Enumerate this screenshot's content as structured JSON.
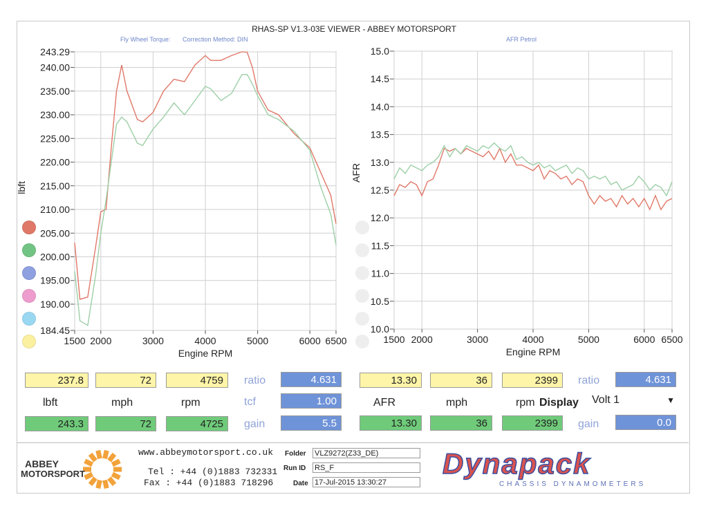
{
  "header": {
    "title": "RHAS-SP V1.3-03E VIEWER - ABBEY MOTORSPORT",
    "left_caption": "Fly Wheel Torque:",
    "left_caption2": "Correction Method: DIN",
    "right_caption": "AFR Petrol"
  },
  "chart_data": [
    {
      "type": "line",
      "xlabel": "Engine RPM",
      "ylabel": "lbft",
      "xlim": [
        1500,
        6500
      ],
      "ylim": [
        184.45,
        243.29
      ],
      "x_ticks": [
        "1500",
        "2000",
        "3000",
        "4000",
        "5000",
        "6000",
        "6500"
      ],
      "y_ticks": [
        "243.29",
        "240.00",
        "235.00",
        "230.00",
        "225.00",
        "220.00",
        "215.00",
        "210.00",
        "205.00",
        "200.00",
        "195.00",
        "190.00",
        "184.45"
      ],
      "grid": true,
      "colors": {
        "red": "#e07868",
        "green": "#9ccfa6"
      },
      "series": [
        {
          "color": "#e07868",
          "x": [
            1500,
            1600,
            1750,
            1900,
            2000,
            2100,
            2200,
            2300,
            2400,
            2500,
            2700,
            2800,
            3000,
            3200,
            3400,
            3600,
            3800,
            4000,
            4100,
            4300,
            4500,
            4700,
            4800,
            4900,
            5000,
            5200,
            5400,
            5700,
            6000,
            6200,
            6400,
            6500
          ],
          "y": [
            203,
            191,
            191.5,
            202,
            209.5,
            210,
            223,
            235,
            240.5,
            235,
            229,
            228.5,
            230.5,
            235,
            237.5,
            237,
            240.5,
            242.5,
            241.5,
            241.5,
            242.5,
            243.3,
            243.2,
            240,
            235,
            231,
            230,
            226,
            223,
            218,
            213,
            207
          ]
        },
        {
          "color": "#9ccfa6",
          "x": [
            1500,
            1600,
            1750,
            1900,
            2000,
            2100,
            2200,
            2300,
            2400,
            2500,
            2700,
            2800,
            3000,
            3200,
            3400,
            3600,
            3800,
            4000,
            4100,
            4300,
            4500,
            4700,
            4800,
            4900,
            5000,
            5200,
            5400,
            5700,
            6000,
            6200,
            6400,
            6500
          ],
          "y": [
            197,
            186.5,
            185.5,
            196,
            205,
            212,
            220,
            228,
            229.5,
            228.5,
            224,
            223.5,
            227,
            229.5,
            232.5,
            230,
            233,
            236,
            235.5,
            233,
            234.5,
            238.5,
            238.5,
            236.5,
            234,
            230,
            229,
            226.5,
            222.5,
            215,
            209,
            202.5
          ]
        }
      ]
    },
    {
      "type": "line",
      "xlabel": "Engine RPM",
      "ylabel": "AFR",
      "xlim": [
        1500,
        6500
      ],
      "ylim": [
        10.0,
        15.0
      ],
      "x_ticks": [
        "1500",
        "2000",
        "3000",
        "4000",
        "5000",
        "6000",
        "6500"
      ],
      "y_ticks": [
        "15.0",
        "14.5",
        "14.0",
        "13.5",
        "13.0",
        "12.5",
        "12.0",
        "11.5",
        "11.0",
        "10.5",
        "10.0"
      ],
      "grid": true,
      "series": [
        {
          "color": "#e07868",
          "x": [
            1500,
            1600,
            1700,
            1800,
            1900,
            2000,
            2100,
            2200,
            2300,
            2400,
            2500,
            2600,
            2700,
            2800,
            2900,
            3000,
            3100,
            3200,
            3300,
            3400,
            3500,
            3600,
            3700,
            3800,
            3900,
            4000,
            4100,
            4200,
            4300,
            4400,
            4500,
            4600,
            4700,
            4800,
            4900,
            5000,
            5100,
            5200,
            5300,
            5400,
            5500,
            5600,
            5700,
            5800,
            5900,
            6000,
            6100,
            6200,
            6300,
            6400,
            6500
          ],
          "y": [
            12.4,
            12.6,
            12.55,
            12.65,
            12.6,
            12.4,
            12.65,
            12.7,
            12.95,
            13.25,
            13.2,
            13.25,
            13.15,
            13.25,
            13.2,
            13.15,
            13.1,
            13.2,
            13.05,
            13.25,
            13.0,
            13.15,
            12.95,
            12.95,
            12.9,
            12.85,
            12.95,
            12.7,
            12.85,
            12.8,
            12.7,
            12.75,
            12.6,
            12.7,
            12.65,
            12.4,
            12.25,
            12.4,
            12.3,
            12.35,
            12.2,
            12.4,
            12.25,
            12.35,
            12.2,
            12.35,
            12.15,
            12.4,
            12.15,
            12.3,
            12.35
          ]
        },
        {
          "color": "#9ccfa6",
          "x": [
            1500,
            1600,
            1700,
            1800,
            1900,
            2000,
            2100,
            2200,
            2300,
            2400,
            2500,
            2600,
            2700,
            2800,
            2900,
            3000,
            3100,
            3200,
            3300,
            3400,
            3500,
            3600,
            3700,
            3800,
            3900,
            4000,
            4100,
            4200,
            4300,
            4400,
            4500,
            4600,
            4700,
            4800,
            4900,
            5000,
            5100,
            5200,
            5300,
            5400,
            5500,
            5600,
            5700,
            5800,
            5900,
            6000,
            6100,
            6200,
            6300,
            6400,
            6500
          ],
          "y": [
            12.7,
            12.9,
            12.8,
            12.95,
            12.9,
            12.85,
            12.95,
            13.0,
            13.1,
            13.3,
            13.1,
            13.25,
            13.15,
            13.3,
            13.25,
            13.2,
            13.3,
            13.25,
            13.35,
            13.25,
            13.2,
            13.3,
            13.05,
            13.1,
            13.0,
            12.95,
            13.0,
            12.9,
            12.95,
            12.85,
            12.9,
            12.95,
            12.8,
            12.9,
            12.85,
            12.7,
            12.75,
            12.7,
            12.75,
            12.6,
            12.65,
            12.5,
            12.55,
            12.6,
            12.75,
            12.65,
            12.5,
            12.6,
            12.55,
            12.4,
            12.65
          ]
        }
      ]
    }
  ],
  "legend_dots": [
    "#e07868",
    "#72c484",
    "#8fa0e0",
    "#ee9ccd",
    "#9ad8f2",
    "#fbf0a0"
  ],
  "readout_left": {
    "row1": [
      "237.8",
      "72",
      "4759"
    ],
    "units": [
      "lbft",
      "mph",
      "rpm"
    ],
    "row2": [
      "243.3",
      "72",
      "4725"
    ],
    "ratio_label": "ratio",
    "ratio_value": "4.631",
    "tcf_label": "tcf",
    "tcf_value": "1.00",
    "gain_label": "gain",
    "gain_value": "5.5"
  },
  "readout_right": {
    "row1": [
      "13.30",
      "36",
      "2399"
    ],
    "units": [
      "AFR",
      "mph",
      "rpm"
    ],
    "display_label": "Display",
    "row2": [
      "13.30",
      "36",
      "2399"
    ],
    "ratio_label": "ratio",
    "ratio_value": "4.631",
    "display_value": "Volt 1",
    "gain_label": "gain",
    "gain_value": "0.0"
  },
  "footer": {
    "website": "www.abbeymotorsport.co.uk",
    "tel": "Tel : +44 (0)1883 732331",
    "fax": "Fax : +44 (0)1883 718296",
    "folder_label": "Folder",
    "folder_value": "VLZ9272(Z33_DE)",
    "runid_label": "Run ID",
    "runid_value": "RS_F",
    "date_label": "Date",
    "date_value": "17-Jul-2015  13:30:27",
    "abbey_logo_line1": "ABBEY",
    "abbey_logo_line2": "MOTORSPORT",
    "dyna_logo": "Dynapack",
    "dyna_sub": "CHASSIS  DYNAMOMETERS"
  }
}
